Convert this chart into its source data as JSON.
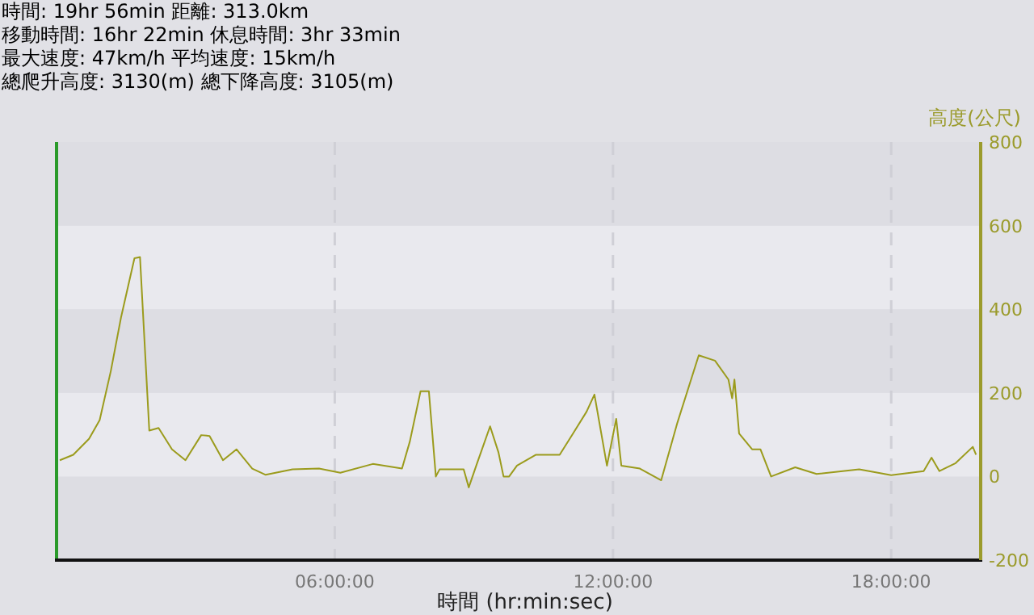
{
  "chart_data": {
    "type": "line",
    "annotations": [
      "時間: 19hr 56min  距離: 313.0km",
      "移動時間: 16hr 22min  休息時間: 3hr 33min",
      "最大速度: 47km/h  平均速度: 15km/h",
      "總爬升高度: 3130(m)  總下降高度: 3105(m)"
    ],
    "xlabel": "時間 (hr:min:sec)",
    "ylabel": "高度(公尺)",
    "xlim": [
      0,
      19.93
    ],
    "xticks": [
      {
        "value": 6,
        "label": "06:00:00"
      },
      {
        "value": 12,
        "label": "12:00:00"
      },
      {
        "value": 18,
        "label": "18:00:00"
      }
    ],
    "ylim": [
      -200,
      800
    ],
    "yticks": [
      -200,
      0,
      200,
      400,
      600,
      800
    ],
    "grid": "x",
    "series": [
      {
        "color": "#9b9b1c",
        "x": [
          0.07,
          0.36,
          0.7,
          0.93,
          1.17,
          1.39,
          1.68,
          1.8,
          2.0,
          2.2,
          2.49,
          2.78,
          3.12,
          3.3,
          3.59,
          3.88,
          4.22,
          4.51,
          5.09,
          5.66,
          6.12,
          6.82,
          7.45,
          7.62,
          7.85,
          8.03,
          8.18,
          8.26,
          8.78,
          8.89,
          9.07,
          9.35,
          9.53,
          9.64,
          9.76,
          9.93,
          10.34,
          10.85,
          11.14,
          11.43,
          11.6,
          11.87,
          12.07,
          12.18,
          12.58,
          13.04,
          13.39,
          13.85,
          14.2,
          14.49,
          14.57,
          14.62,
          14.72,
          15.0,
          15.18,
          15.41,
          15.93,
          16.39,
          17.31,
          18.0,
          18.7,
          18.87,
          19.04,
          19.39,
          19.76,
          19.83
        ],
        "values": [
          39,
          52,
          90,
          135,
          252,
          380,
          522,
          525,
          110,
          116,
          65,
          39,
          99,
          97,
          39,
          65,
          19,
          4,
          17,
          19,
          9,
          30,
          19,
          84,
          204,
          204,
          0,
          17,
          17,
          -26,
          32,
          120,
          58,
          0,
          0,
          26,
          52,
          52,
          103,
          155,
          196,
          26,
          138,
          26,
          19,
          -9,
          129,
          290,
          277,
          232,
          187,
          232,
          103,
          65,
          65,
          0,
          22,
          6,
          17,
          3,
          13,
          45,
          13,
          32,
          71,
          52
        ]
      }
    ]
  }
}
